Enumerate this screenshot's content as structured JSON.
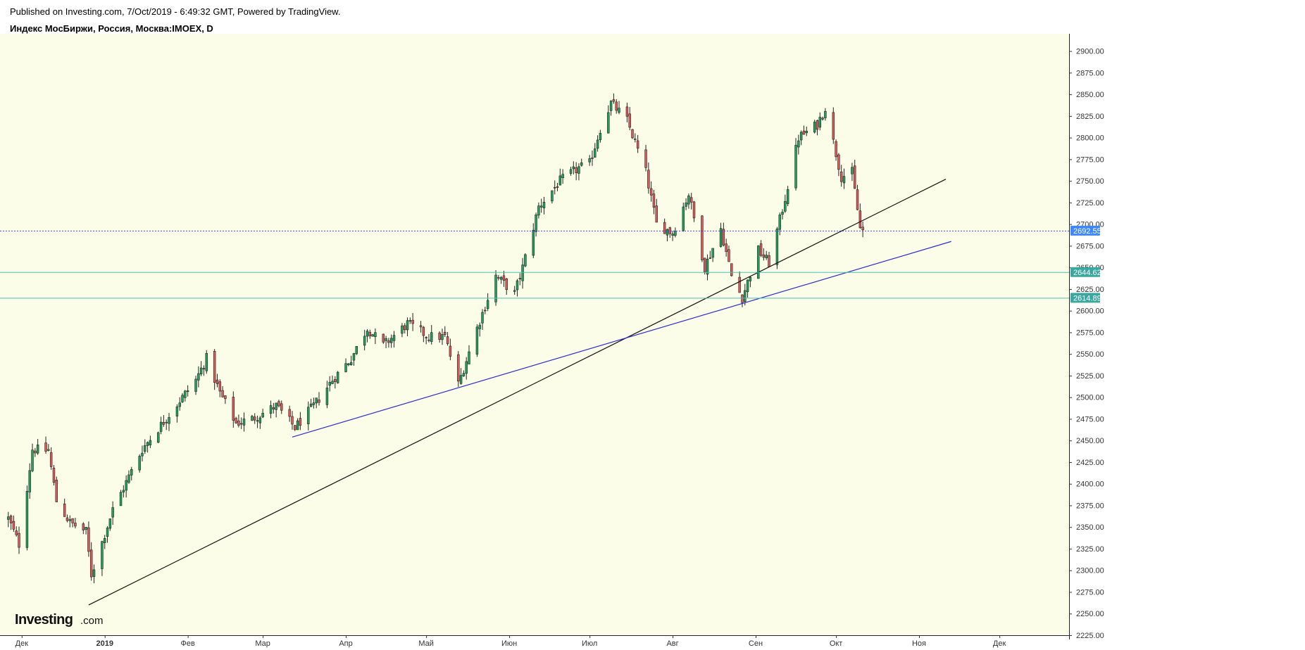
{
  "header": {
    "published": "Published on Investing.com, 7/Oct/2019 - 6:49:32 GMT, Powered by TradingView.",
    "symbol": "Индекс МосБиржи, Россия, Москва:IMOEX, D"
  },
  "logo": {
    "brand": "Investing",
    "suffix": ".com"
  },
  "colors": {
    "background": "#fbfde8",
    "up": "#1fa35c",
    "down": "#e05a5a",
    "wick": "#222222",
    "support_line_black": "#111111",
    "support_line_blue": "#2b2bdc",
    "current_price_line": "#3c3cf0",
    "level_line": "#4fbfb5",
    "current_tag": "#3d88ff",
    "level_tag": "#3aa7a0"
  },
  "chart_data": {
    "type": "candlestick",
    "timeframe": "D",
    "x_axis": {
      "start_date": "2018-11-25",
      "end_date": "2019-12-27",
      "labels": [
        {
          "date": "2018-12-01",
          "text": "Дек"
        },
        {
          "date": "2019-01-01",
          "text": "2019"
        },
        {
          "date": "2019-02-01",
          "text": "Фев"
        },
        {
          "date": "2019-03-01",
          "text": "Мар"
        },
        {
          "date": "2019-04-01",
          "text": "Апр"
        },
        {
          "date": "2019-05-01",
          "text": "Май"
        },
        {
          "date": "2019-06-01",
          "text": "Июн"
        },
        {
          "date": "2019-07-01",
          "text": "Июл"
        },
        {
          "date": "2019-08-01",
          "text": "Авг"
        },
        {
          "date": "2019-09-01",
          "text": "Сен"
        },
        {
          "date": "2019-10-01",
          "text": "Окт"
        },
        {
          "date": "2019-11-01",
          "text": "Ноя"
        },
        {
          "date": "2019-12-01",
          "text": "Дек"
        }
      ]
    },
    "y_axis": {
      "min": 2225,
      "max": 2920,
      "step": 25,
      "tick_labels": [
        "2225.00",
        "2250.00",
        "2275.00",
        "2300.00",
        "2325.00",
        "2350.00",
        "2375.00",
        "2400.00",
        "2425.00",
        "2450.00",
        "2475.00",
        "2500.00",
        "2525.00",
        "2550.00",
        "2575.00",
        "2600.00",
        "2625.00",
        "2650.00",
        "2675.00",
        "2700.00",
        "2725.00",
        "2750.00",
        "2775.00",
        "2800.00",
        "2825.00",
        "2850.00",
        "2875.00",
        "2900.00"
      ]
    },
    "price_tags": [
      {
        "value": 2692.55,
        "label": "2692.55",
        "kind": "current"
      },
      {
        "value": 2644.62,
        "label": "2644.62",
        "kind": "level"
      },
      {
        "value": 2614.89,
        "label": "2614.89",
        "kind": "level"
      }
    ],
    "trendlines": [
      {
        "name": "black",
        "from": {
          "date": "2018-12-26",
          "value": 2260
        },
        "to": {
          "date": "2019-11-11",
          "value": 2752
        }
      },
      {
        "name": "blue",
        "from": {
          "date": "2019-03-12",
          "value": 2454
        },
        "to": {
          "date": "2019-11-13",
          "value": 2680
        }
      }
    ],
    "waypoints": [
      [
        "2018-11-26",
        2360
      ],
      [
        "2018-11-30",
        2330
      ],
      [
        "2018-12-05",
        2440
      ],
      [
        "2018-12-11",
        2438
      ],
      [
        "2018-12-14",
        2380
      ],
      [
        "2018-12-19",
        2355
      ],
      [
        "2018-12-25",
        2345
      ],
      [
        "2018-12-27",
        2295
      ],
      [
        "2019-01-04",
        2370
      ],
      [
        "2019-01-15",
        2440
      ],
      [
        "2019-01-25",
        2480
      ],
      [
        "2019-02-04",
        2520
      ],
      [
        "2019-02-08",
        2545
      ],
      [
        "2019-02-13",
        2505
      ],
      [
        "2019-02-19",
        2470
      ],
      [
        "2019-02-25",
        2475
      ],
      [
        "2019-03-06",
        2490
      ],
      [
        "2019-03-13",
        2465
      ],
      [
        "2019-03-20",
        2490
      ],
      [
        "2019-03-27",
        2520
      ],
      [
        "2019-04-03",
        2545
      ],
      [
        "2019-04-09",
        2580
      ],
      [
        "2019-04-15",
        2560
      ],
      [
        "2019-04-24",
        2585
      ],
      [
        "2019-05-02",
        2570
      ],
      [
        "2019-05-08",
        2570
      ],
      [
        "2019-05-13",
        2515
      ],
      [
        "2019-05-20",
        2580
      ],
      [
        "2019-05-27",
        2640
      ],
      [
        "2019-06-03",
        2620
      ],
      [
        "2019-06-06",
        2650
      ],
      [
        "2019-06-12",
        2720
      ],
      [
        "2019-06-20",
        2750
      ],
      [
        "2019-06-27",
        2765
      ],
      [
        "2019-07-01",
        2770
      ],
      [
        "2019-07-05",
        2810
      ],
      [
        "2019-07-09",
        2840
      ],
      [
        "2019-07-15",
        2820
      ],
      [
        "2019-07-22",
        2760
      ],
      [
        "2019-07-26",
        2700
      ],
      [
        "2019-08-01",
        2690
      ],
      [
        "2019-08-07",
        2735
      ],
      [
        "2019-08-13",
        2650
      ],
      [
        "2019-08-19",
        2695
      ],
      [
        "2019-08-23",
        2640
      ],
      [
        "2019-08-27",
        2615
      ],
      [
        "2019-09-02",
        2670
      ],
      [
        "2019-09-06",
        2655
      ],
      [
        "2019-09-12",
        2730
      ],
      [
        "2019-09-17",
        2800
      ],
      [
        "2019-09-24",
        2815
      ],
      [
        "2019-09-27",
        2835
      ],
      [
        "2019-10-03",
        2755
      ],
      [
        "2019-10-07",
        2760
      ],
      [
        "2019-10-10",
        2695
      ],
      [
        "2019-10-11",
        2692.55
      ]
    ],
    "last_date": "2019-10-11"
  }
}
